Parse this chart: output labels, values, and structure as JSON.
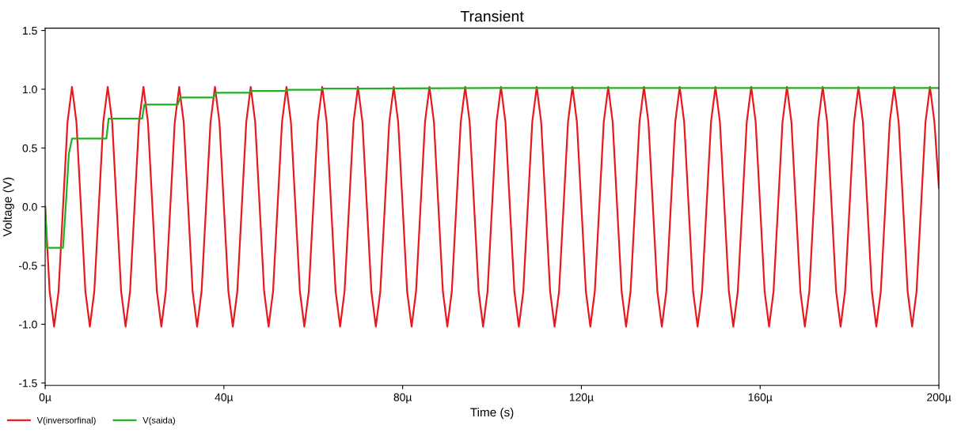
{
  "chart_data": {
    "type": "line",
    "title": "Transient",
    "xlabel": "Time (s)",
    "ylabel": "Voltage (V)",
    "xlim": [
      0,
      200
    ],
    "ylim": [
      -1.52,
      1.52
    ],
    "xticks": [
      {
        "value": 0,
        "label": "0µ"
      },
      {
        "value": 40,
        "label": "40µ"
      },
      {
        "value": 80,
        "label": "80µ"
      },
      {
        "value": 120,
        "label": "120µ"
      },
      {
        "value": 160,
        "label": "160µ"
      },
      {
        "value": 200,
        "label": "200µ"
      }
    ],
    "yticks": [
      {
        "value": -1.5,
        "label": "-1.5"
      },
      {
        "value": -1.0,
        "label": "-1.0"
      },
      {
        "value": -0.5,
        "label": "-0.5"
      },
      {
        "value": 0,
        "label": "0.0"
      },
      {
        "value": 0.5,
        "label": "0.5"
      },
      {
        "value": 1.0,
        "label": "1.0"
      },
      {
        "value": 1.5,
        "label": "1.5"
      }
    ],
    "grid": false,
    "legend": "bottom left",
    "series": [
      {
        "name": "V(inversorfinal)",
        "color": "#e8191e",
        "x": [
          0,
          1,
          2,
          3,
          4,
          5,
          6,
          7,
          8,
          9,
          10,
          11,
          12,
          13,
          14,
          15,
          16,
          17,
          18,
          19,
          20,
          21,
          22,
          23,
          24,
          25,
          26,
          27,
          28,
          29,
          30,
          31,
          32,
          33,
          34,
          35,
          36,
          37,
          38,
          39,
          40,
          41,
          42,
          43,
          44,
          45,
          46,
          47,
          48,
          49,
          50,
          51,
          52,
          53,
          54,
          55,
          56,
          57,
          58,
          59,
          60,
          61,
          62,
          63,
          64,
          65,
          66,
          67,
          68,
          69,
          70,
          71,
          72,
          73,
          74,
          75,
          76,
          77,
          78,
          79,
          80,
          81,
          82,
          83,
          84,
          85,
          86,
          87,
          88,
          89,
          90,
          91,
          92,
          93,
          94,
          95,
          96,
          97,
          98,
          99,
          100,
          101,
          102,
          103,
          104,
          105,
          106,
          107,
          108,
          109,
          110,
          111,
          112,
          113,
          114,
          115,
          116,
          117,
          118,
          119,
          120,
          121,
          122,
          123,
          124,
          125,
          126,
          127,
          128,
          129,
          130,
          131,
          132,
          133,
          134,
          135,
          136,
          137,
          138,
          139,
          140,
          141,
          142,
          143,
          144,
          145,
          146,
          147,
          148,
          149,
          150,
          151,
          152,
          153,
          154,
          155,
          156,
          157,
          158,
          159,
          160,
          161,
          162,
          163,
          164,
          165,
          166,
          167,
          168,
          169,
          170,
          171,
          172,
          173,
          174,
          175,
          176,
          177,
          178,
          179,
          180,
          181,
          182,
          183,
          184,
          185,
          186,
          187,
          188,
          189,
          190,
          191,
          192,
          193,
          194,
          195,
          196,
          197,
          198,
          199,
          200
        ],
        "values": [
          0,
          -0.72,
          -1.02,
          -0.72,
          0,
          0.72,
          1.02,
          0.72,
          0,
          -0.72,
          -1.02,
          -0.72,
          0,
          0.72,
          1.02,
          0.72,
          0,
          -0.72,
          -1.02,
          -0.72,
          0,
          0.72,
          1.02,
          0.72,
          0,
          -0.72,
          -1.02,
          -0.72,
          0,
          0.72,
          1.02,
          0.72,
          0,
          -0.72,
          -1.02,
          -0.72,
          0,
          0.72,
          1.02,
          0.72,
          0,
          -0.72,
          -1.02,
          -0.72,
          0,
          0.72,
          1.02,
          0.72,
          0,
          -0.72,
          -1.02,
          -0.72,
          0,
          0.72,
          1.02,
          0.72,
          0,
          -0.72,
          -1.02,
          -0.72,
          0,
          0.72,
          1.02,
          0.72,
          0,
          -0.72,
          -1.02,
          -0.72,
          0,
          0.72,
          1.02,
          0.72,
          0,
          -0.72,
          -1.02,
          -0.72,
          0,
          0.72,
          1.02,
          0.72,
          0,
          -0.72,
          -1.02,
          -0.72,
          0,
          0.72,
          1.02,
          0.72,
          0,
          -0.72,
          -1.02,
          -0.72,
          0,
          0.72,
          1.02,
          0.72,
          0,
          -0.72,
          -1.02,
          -0.72,
          0,
          0.72,
          1.02,
          0.72,
          0,
          -0.72,
          -1.02,
          -0.72,
          0,
          0.72,
          1.02,
          0.72,
          0,
          -0.72,
          -1.02,
          -0.72,
          0,
          0.72,
          1.02,
          0.72,
          0,
          -0.72,
          -1.02,
          -0.72,
          0,
          0.72,
          1.02,
          0.72,
          0,
          -0.72,
          -1.02,
          -0.72,
          0,
          0.72,
          1.02,
          0.72,
          0,
          -0.72,
          -1.02,
          -0.72,
          0,
          0.72,
          1.02,
          0.72,
          0,
          -0.72,
          -1.02,
          -0.72,
          0,
          0.72,
          1.02,
          0.72,
          0,
          -0.72,
          -1.02,
          -0.72,
          0,
          0.72,
          1.02,
          0.72,
          0,
          -0.72,
          -1.02,
          -0.72,
          0,
          0.72,
          1.02,
          0.72,
          0,
          -0.72,
          -1.02,
          -0.72,
          0,
          0.72,
          1.02,
          0.72,
          0,
          -0.72,
          -1.02,
          -0.72,
          0,
          0.72,
          1.02,
          0.72,
          0,
          -0.72,
          -1.02,
          -0.72,
          0,
          0.72,
          1.02,
          0.72,
          0,
          -0.72,
          -1.02,
          -0.72,
          0,
          0.72,
          1.02,
          0.72,
          0.16
        ]
      },
      {
        "name": "V(saida)",
        "color": "#22b022",
        "marker": "none",
        "x": [
          0,
          0.4,
          4.0,
          4.6,
          5.3,
          6.0,
          13.7,
          14.2,
          21.7,
          22.2,
          29.7,
          30.2,
          37.7,
          38.2,
          45.7,
          46.2,
          53.7,
          54.2,
          61.7,
          62.2,
          70,
          100,
          150,
          200
        ],
        "values": [
          0,
          -0.35,
          -0.35,
          0.0,
          0.45,
          0.58,
          0.58,
          0.75,
          0.75,
          0.87,
          0.87,
          0.93,
          0.93,
          0.97,
          0.97,
          0.985,
          0.985,
          0.995,
          0.995,
          1.005,
          1.005,
          1.01,
          1.01,
          1.01
        ]
      }
    ]
  }
}
